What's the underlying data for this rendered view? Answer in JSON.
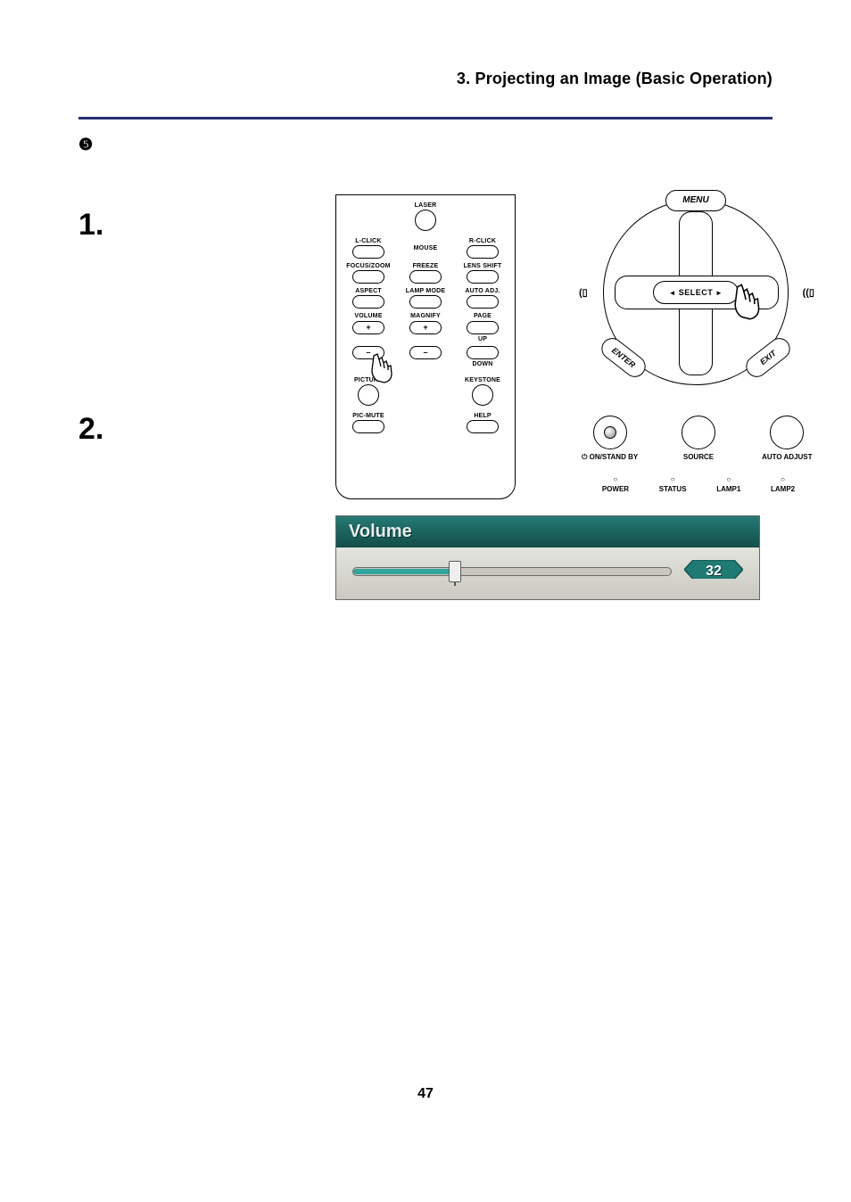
{
  "header": {
    "title": "3. Projecting an Image (Basic Operation)"
  },
  "section_bullet_glyph": "❺",
  "steps": {
    "one": "1.",
    "two": "2."
  },
  "remote": {
    "labels": {
      "laser": "LASER",
      "lclick": "L-CLICK",
      "rclick": "R-CLICK",
      "mouse": "MOUSE",
      "focuszoom": "FOCUS/ZOOM",
      "freeze": "FREEZE",
      "lensshift": "LENS SHIFT",
      "aspect": "ASPECT",
      "lampmode": "LAMP MODE",
      "autoadj": "AUTO ADJ.",
      "volume": "VOLUME",
      "magnify": "MAGNIFY",
      "page": "PAGE",
      "up": "UP",
      "down": "DOWN",
      "picture": "PICTURE",
      "keystone": "KEYSTONE",
      "picmute": "PIC-MUTE",
      "help": "HELP",
      "plus": "+",
      "minus": "–"
    }
  },
  "panel": {
    "menu": "MENU",
    "select": "SELECT",
    "enter": "ENTER",
    "exit": "EXIT",
    "side_left_icon": "(▯",
    "side_right_icon": "((▯",
    "buttons": {
      "onstandby": "⏻ ON/STAND BY",
      "source": "SOURCE",
      "autoadjust": "AUTO ADJUST"
    },
    "indicators": {
      "power": "POWER",
      "status": "STATUS",
      "lamp1": "LAMP1",
      "lamp2": "LAMP2"
    }
  },
  "osd": {
    "title": "Volume",
    "value": 32,
    "min": 0,
    "max": 100,
    "track_color": "#2a8a82",
    "fill_color": "#2fa59b",
    "badge_fill": "#1f7a73",
    "badge_stroke": "#0d4a45",
    "header_bg_top": "#267a75",
    "header_bg_bottom": "#134d49",
    "body_bg": "#d8d8d2"
  },
  "page_number": "47",
  "colors": {
    "header_rule": "#2b2e70"
  }
}
